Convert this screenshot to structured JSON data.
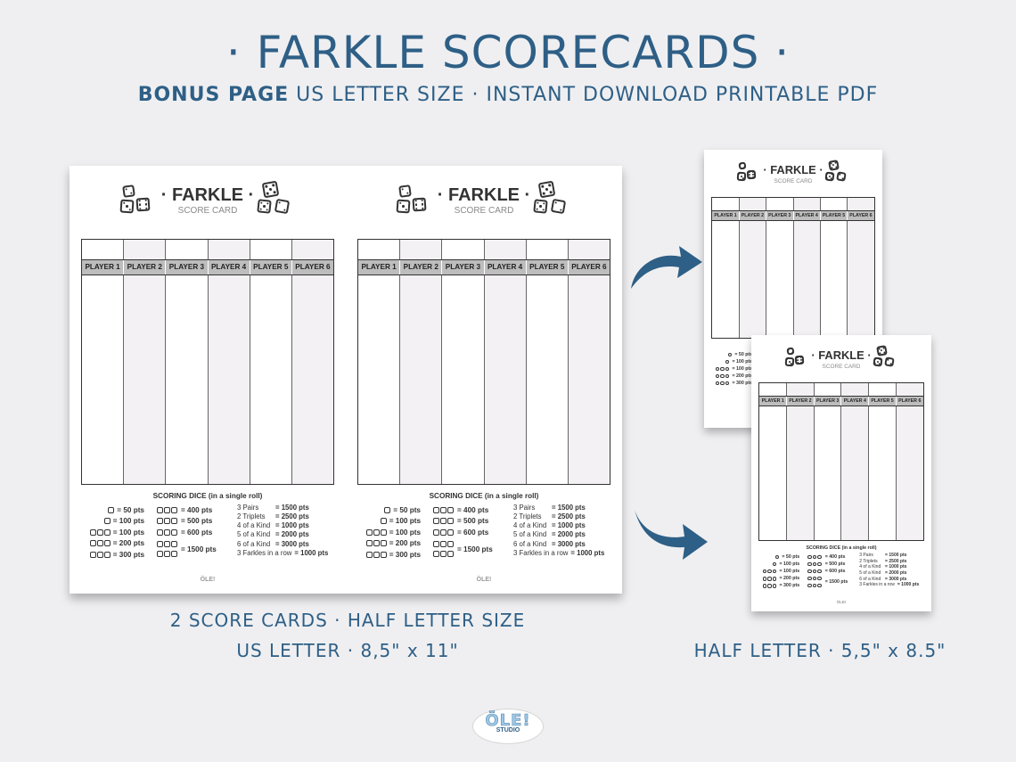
{
  "header": {
    "title": "· FARKLE SCORECARDS ·",
    "subtitle_bold": "BONUS PAGE",
    "subtitle_rest": " US LETTER SIZE · INSTANT DOWNLOAD PRINTABLE PDF"
  },
  "card": {
    "title": "· FARKLE ·",
    "subtitle": "SCORE CARD",
    "players": [
      "PLAYER 1",
      "PLAYER 2",
      "PLAYER 3",
      "PLAYER 4",
      "PLAYER 5",
      "PLAYER 6"
    ],
    "rules_title": "SCORING DICE (in a single roll)",
    "dice_scores_a": [
      "= 50 pts",
      "= 100 pts",
      "= 100 pts",
      "= 200 pts",
      "= 300 pts"
    ],
    "dice_scores_b": [
      "= 400 pts",
      "= 500 pts",
      "= 600 pts",
      "= 1500 pts"
    ],
    "combos": [
      {
        "name": "3 Pairs",
        "pts": "= 1500 pts"
      },
      {
        "name": "2 Triplets",
        "pts": "= 2500 pts"
      },
      {
        "name": "4 of a Kind",
        "pts": "= 1000 pts"
      },
      {
        "name": "5 of a Kind",
        "pts": "= 2000 pts"
      },
      {
        "name": "6 of a Kind",
        "pts": "= 3000 pts"
      },
      {
        "name": "3 Farkles in a row",
        "pts": "= 1000 pts"
      }
    ],
    "logo_text": "ÖLE!"
  },
  "captions": {
    "left_line1": "2 SCORE CARDS · HALF LETTER SIZE",
    "left_line2": "US LETTER · 8,5\" x 11\"",
    "right": "HALF LETTER · 5,5\" x 8.5\""
  },
  "brand": {
    "logo_main": "ÖLE!",
    "logo_sub": "STUDIO"
  },
  "colors": {
    "accent": "#2e5f86",
    "background": "#efeff1",
    "header_row": "#bdbdbd"
  }
}
